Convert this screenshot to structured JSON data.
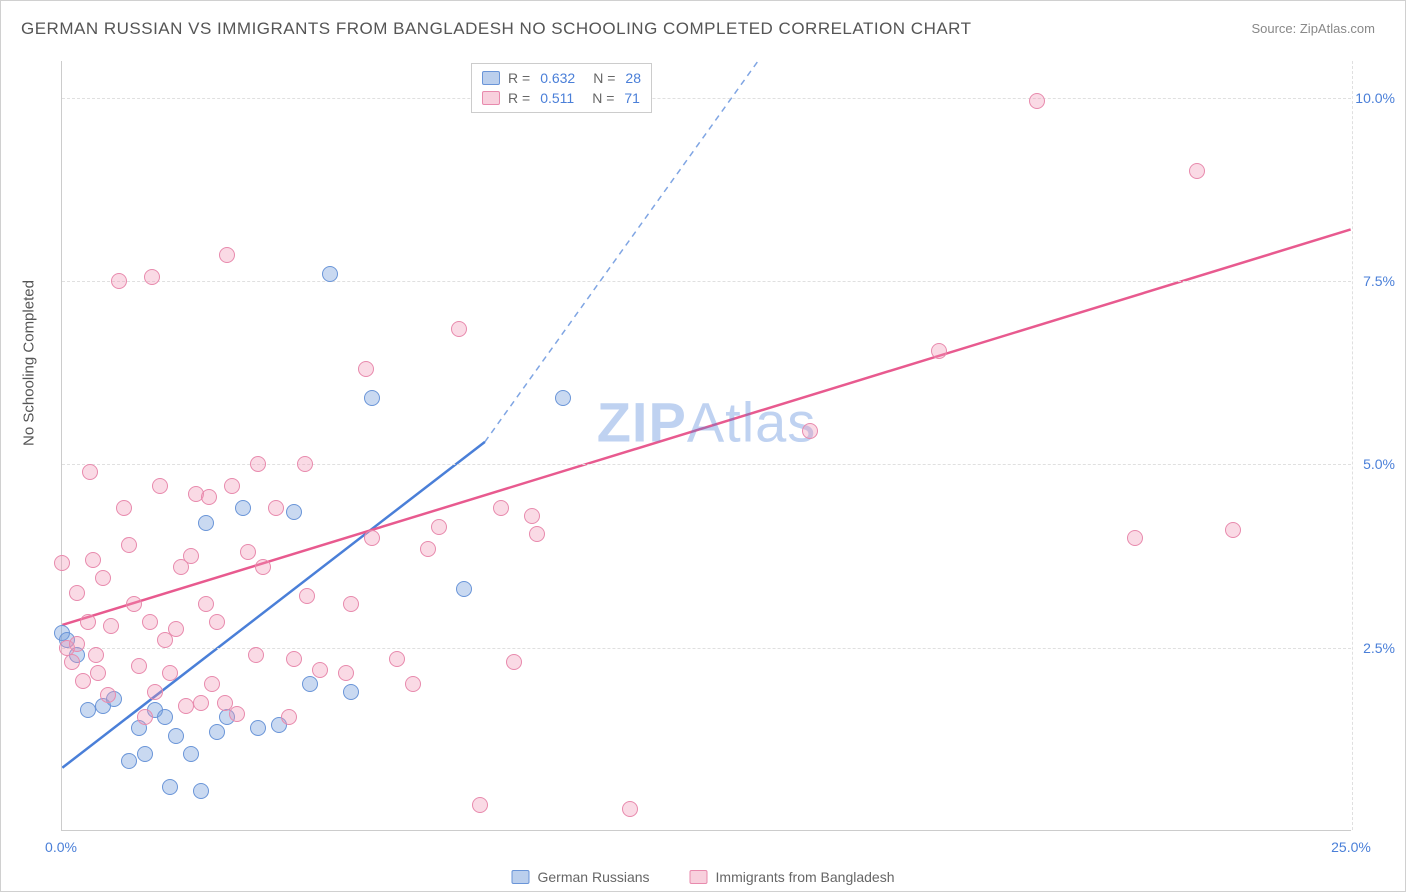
{
  "title": "GERMAN RUSSIAN VS IMMIGRANTS FROM BANGLADESH NO SCHOOLING COMPLETED CORRELATION CHART",
  "source_prefix": "Source: ",
  "source_name": "ZipAtlas.com",
  "y_axis_label": "No Schooling Completed",
  "watermark_bold": "ZIP",
  "watermark_rest": "Atlas",
  "chart": {
    "type": "scatter",
    "xlim": [
      0,
      25
    ],
    "ylim": [
      0,
      10.5
    ],
    "x_ticks": [
      {
        "pos": 0,
        "label": "0.0%"
      },
      {
        "pos": 25,
        "label": "25.0%"
      }
    ],
    "y_ticks": [
      {
        "pos": 2.5,
        "label": "2.5%"
      },
      {
        "pos": 5.0,
        "label": "5.0%"
      },
      {
        "pos": 7.5,
        "label": "7.5%"
      },
      {
        "pos": 10.0,
        "label": "10.0%"
      }
    ],
    "grid_color": "#e0e0e0",
    "background_color": "#ffffff",
    "marker_size": 16,
    "series": [
      {
        "name": "German Russians",
        "color_fill": "rgba(120,160,220,0.4)",
        "color_stroke": "#6a95d8",
        "line_color": "#4a7fd8",
        "line_dash_extend": true,
        "R": "0.632",
        "N": "28",
        "trend": {
          "x1": 0,
          "y1": 0.85,
          "x2": 8.2,
          "y2": 5.3,
          "x2_ext": 13.5,
          "y2_ext": 10.5
        },
        "points": [
          [
            0.0,
            2.7
          ],
          [
            0.1,
            2.6
          ],
          [
            0.3,
            2.4
          ],
          [
            0.5,
            1.65
          ],
          [
            0.8,
            1.7
          ],
          [
            1.0,
            1.8
          ],
          [
            1.3,
            0.95
          ],
          [
            1.5,
            1.4
          ],
          [
            1.6,
            1.05
          ],
          [
            1.8,
            1.65
          ],
          [
            2.0,
            1.55
          ],
          [
            2.1,
            0.6
          ],
          [
            2.2,
            1.3
          ],
          [
            2.5,
            1.05
          ],
          [
            2.7,
            0.55
          ],
          [
            2.8,
            4.2
          ],
          [
            3.0,
            1.35
          ],
          [
            3.2,
            1.55
          ],
          [
            3.5,
            4.4
          ],
          [
            3.8,
            1.4
          ],
          [
            4.2,
            1.45
          ],
          [
            4.5,
            4.35
          ],
          [
            4.8,
            2.0
          ],
          [
            5.2,
            7.6
          ],
          [
            5.6,
            1.9
          ],
          [
            6.0,
            5.9
          ],
          [
            7.8,
            3.3
          ],
          [
            9.7,
            5.9
          ]
        ]
      },
      {
        "name": "Immigrants from Bangladesh",
        "color_fill": "rgba(240,150,180,0.35)",
        "color_stroke": "#e88aad",
        "line_color": "#e85a8f",
        "line_dash_extend": false,
        "R": "0.511",
        "N": "71",
        "trend": {
          "x1": 0,
          "y1": 2.8,
          "x2": 25,
          "y2": 8.2
        },
        "points": [
          [
            0.0,
            3.65
          ],
          [
            0.1,
            2.5
          ],
          [
            0.2,
            2.3
          ],
          [
            0.3,
            2.55
          ],
          [
            0.3,
            3.25
          ],
          [
            0.4,
            2.05
          ],
          [
            0.5,
            2.85
          ],
          [
            0.55,
            4.9
          ],
          [
            0.6,
            3.7
          ],
          [
            0.65,
            2.4
          ],
          [
            0.7,
            2.15
          ],
          [
            0.8,
            3.45
          ],
          [
            0.9,
            1.85
          ],
          [
            0.95,
            2.8
          ],
          [
            1.1,
            7.5
          ],
          [
            1.2,
            4.4
          ],
          [
            1.3,
            3.9
          ],
          [
            1.4,
            3.1
          ],
          [
            1.5,
            2.25
          ],
          [
            1.6,
            1.55
          ],
          [
            1.7,
            2.85
          ],
          [
            1.75,
            7.55
          ],
          [
            1.8,
            1.9
          ],
          [
            1.9,
            4.7
          ],
          [
            2.0,
            2.6
          ],
          [
            2.1,
            2.15
          ],
          [
            2.2,
            2.75
          ],
          [
            2.3,
            3.6
          ],
          [
            2.4,
            1.7
          ],
          [
            2.5,
            3.75
          ],
          [
            2.6,
            4.6
          ],
          [
            2.7,
            1.75
          ],
          [
            2.8,
            3.1
          ],
          [
            2.85,
            4.55
          ],
          [
            2.9,
            2.0
          ],
          [
            3.0,
            2.85
          ],
          [
            3.15,
            1.75
          ],
          [
            3.2,
            7.85
          ],
          [
            3.3,
            4.7
          ],
          [
            3.4,
            1.6
          ],
          [
            3.6,
            3.8
          ],
          [
            3.75,
            2.4
          ],
          [
            3.8,
            5.0
          ],
          [
            3.9,
            3.6
          ],
          [
            4.15,
            4.4
          ],
          [
            4.4,
            1.55
          ],
          [
            4.5,
            2.35
          ],
          [
            4.7,
            5.0
          ],
          [
            4.75,
            3.2
          ],
          [
            5.0,
            2.2
          ],
          [
            5.5,
            2.15
          ],
          [
            5.6,
            3.1
          ],
          [
            5.9,
            6.3
          ],
          [
            6.0,
            4.0
          ],
          [
            6.5,
            2.35
          ],
          [
            6.8,
            2.0
          ],
          [
            7.1,
            3.85
          ],
          [
            7.3,
            4.15
          ],
          [
            7.7,
            6.85
          ],
          [
            8.1,
            0.35
          ],
          [
            8.5,
            4.4
          ],
          [
            8.75,
            2.3
          ],
          [
            9.1,
            4.3
          ],
          [
            9.2,
            4.05
          ],
          [
            11.0,
            0.3
          ],
          [
            14.5,
            5.45
          ],
          [
            17.0,
            6.55
          ],
          [
            18.9,
            9.95
          ],
          [
            20.8,
            4.0
          ],
          [
            22.0,
            9.0
          ],
          [
            22.7,
            4.1
          ]
        ]
      }
    ],
    "legend_bottom": [
      {
        "swatch": "blue",
        "label": "German Russians"
      },
      {
        "swatch": "pink",
        "label": "Immigrants from Bangladesh"
      }
    ]
  }
}
